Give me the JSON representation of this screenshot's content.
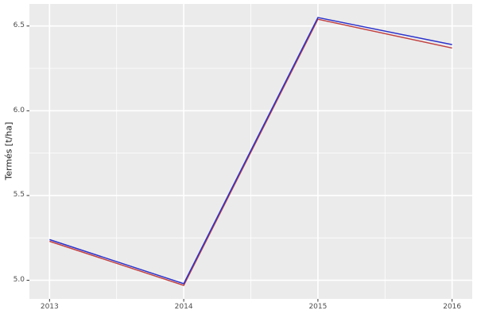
{
  "chart_data": {
    "type": "line",
    "title": "",
    "xlabel": "",
    "ylabel": "Termés [t/ha]",
    "x": [
      2013,
      2014,
      2015,
      2016
    ],
    "series": [
      {
        "name": "red-line",
        "color": "#c24040",
        "values": [
          5.23,
          4.97,
          6.54,
          6.37
        ]
      },
      {
        "name": "blue-line",
        "color": "#2b32cc",
        "values": [
          5.24,
          4.98,
          6.55,
          6.39
        ]
      }
    ],
    "x_ticks": [
      {
        "value": 2013,
        "label": "2013"
      },
      {
        "value": 2014,
        "label": "2014"
      },
      {
        "value": 2015,
        "label": "2015"
      },
      {
        "value": 2016,
        "label": "2016"
      }
    ],
    "y_ticks": [
      {
        "value": 5.0,
        "label": "5.0"
      },
      {
        "value": 5.5,
        "label": "5.5"
      },
      {
        "value": 6.0,
        "label": "6.0"
      },
      {
        "value": 6.5,
        "label": "6.5"
      }
    ],
    "x_minor_ticks": [
      2013.5,
      2014.5,
      2015.5
    ],
    "y_minor_ticks": [
      5.25,
      5.75,
      6.25
    ],
    "xlim": [
      2012.85,
      2016.15
    ],
    "ylim": [
      4.89,
      6.63
    ],
    "grid": "on",
    "legend": "none",
    "colors": {
      "panel_background": "#ebebeb",
      "gridline": "#ffffff",
      "tick_mark": "#333333",
      "tick_label": "#4d4d4d",
      "axis_title": "#1a1a1a",
      "figure_background": "#ffffff"
    }
  }
}
